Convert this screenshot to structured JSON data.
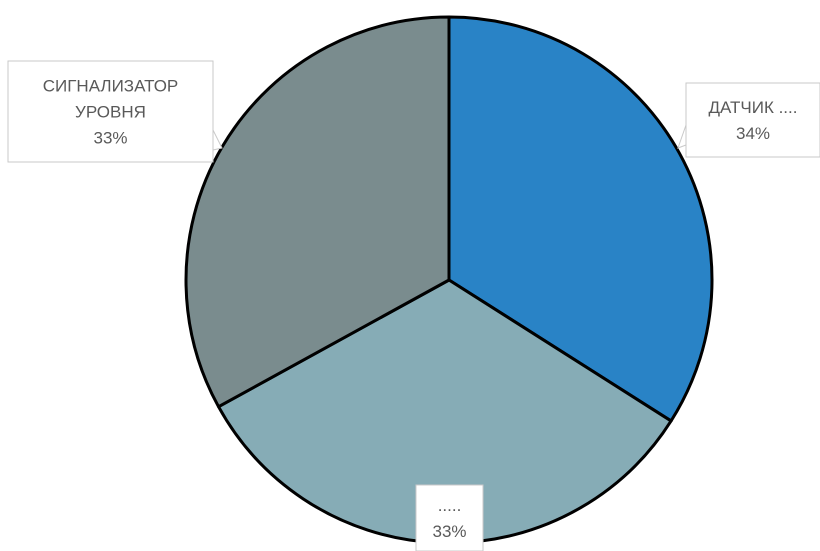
{
  "chart_data": {
    "type": "pie",
    "title": "",
    "slices": [
      {
        "label": "ДАТЧИК ....",
        "value": 34,
        "value_label": "34%",
        "color": "#2983c6"
      },
      {
        "label": ".....",
        "value": 33,
        "value_label": "33%",
        "color": "#86acb6"
      },
      {
        "label": "СИГНАЛИЗАТОР УРОВНЯ",
        "label_lines": [
          "СИГНАЛИЗАТОР",
          "УРОВНЯ"
        ],
        "value": 33,
        "value_label": "33%",
        "color": "#7a8c8e"
      }
    ],
    "start_angle": "12 o'clock",
    "direction": "clockwise",
    "data_labels": "callouts with category name and percent",
    "legend": "none"
  }
}
